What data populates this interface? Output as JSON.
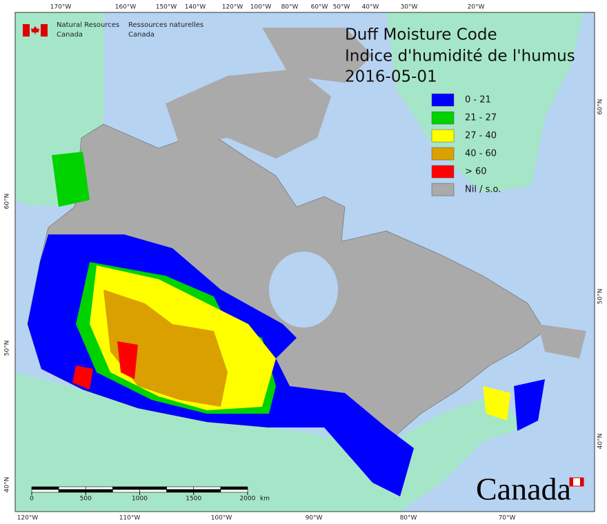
{
  "header": {
    "org_en": [
      "Natural Resources",
      "Canada"
    ],
    "org_fr": [
      "Ressources naturelles",
      "Canada"
    ]
  },
  "title": [
    "Duff Moisture Code",
    "Indice d'humidité de l'humus",
    "2016-05-01"
  ],
  "legend": [
    {
      "label": "0 - 21",
      "color": "#0000ff"
    },
    {
      "label": "21 - 27",
      "color": "#00d200"
    },
    {
      "label": "27 - 40",
      "color": "#ffff00"
    },
    {
      "label": "40 - 60",
      "color": "#d9a000"
    },
    {
      "label": "> 60",
      "color": "#ff0000"
    },
    {
      "label": "Nil / s.o.",
      "color": "#aaaaaa"
    }
  ],
  "graticule": {
    "top": [
      "170°W",
      "160°W",
      "150°W",
      "140°W",
      "120°W",
      "100°W",
      "80°W",
      "60°W",
      "50°W",
      "40°W",
      "30°W",
      "20°W"
    ],
    "bottom": [
      "120°W",
      "110°W",
      "100°W",
      "90°W",
      "80°W",
      "70°W"
    ],
    "left": [
      "60°N",
      "50°N",
      "40°N"
    ],
    "right": [
      "60°N",
      "50°N",
      "40°N"
    ]
  },
  "scale": {
    "ticks": [
      0,
      500,
      1000,
      1500,
      2000
    ],
    "unit": "km"
  },
  "wordmark": "Canada"
}
